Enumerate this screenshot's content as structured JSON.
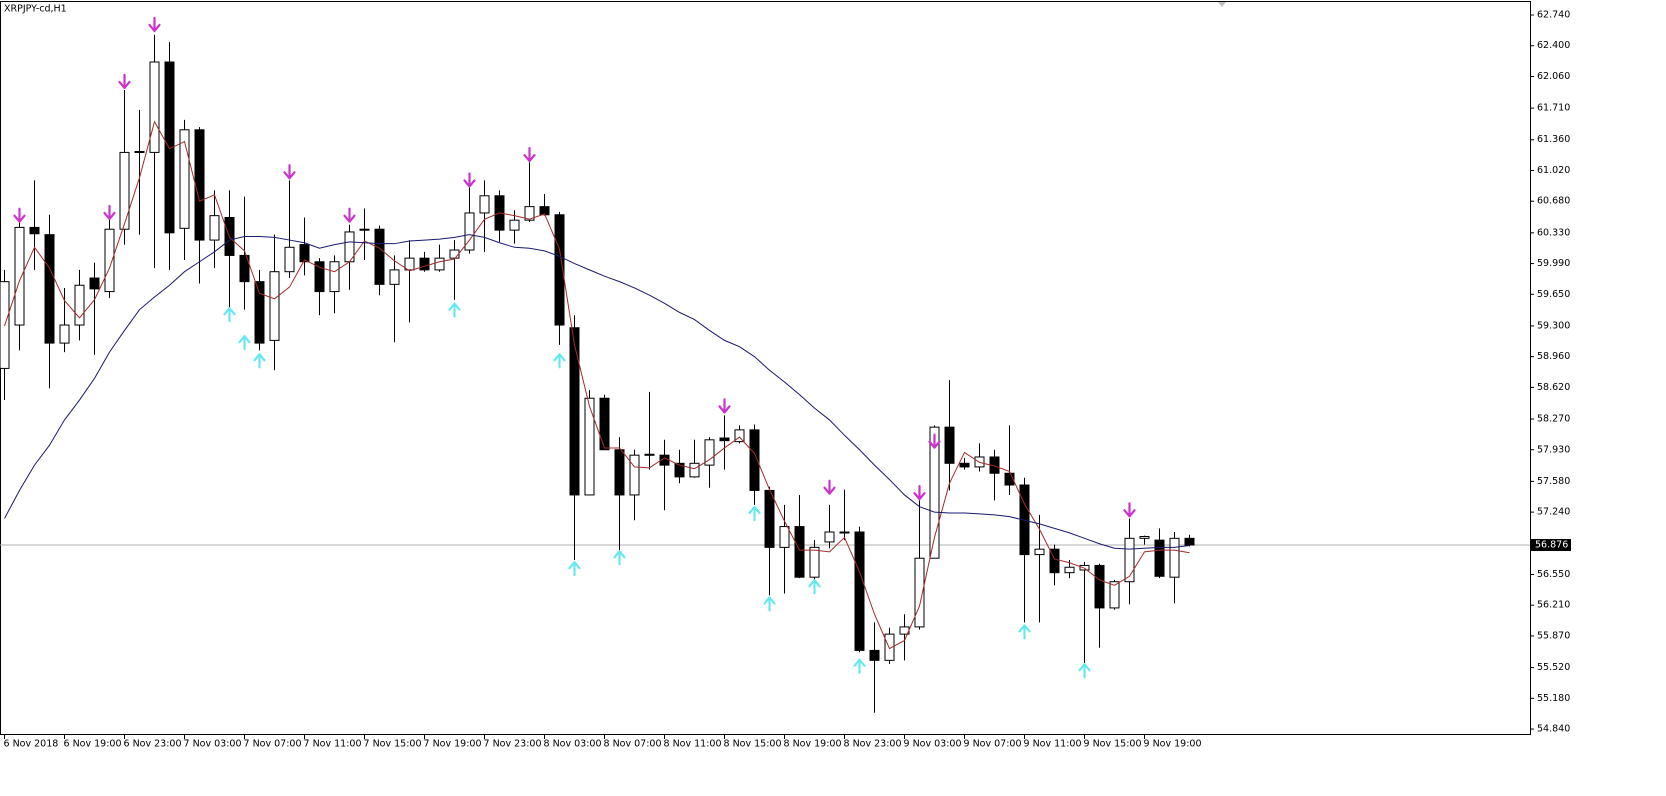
{
  "chart_data": {
    "type": "candlestick",
    "title": "XRPJPY-cd,H1",
    "categories": [
      "6 Nov 2018",
      null,
      null,
      null,
      "6 Nov 19:00",
      null,
      null,
      null,
      "6 Nov 23:00",
      null,
      null,
      null,
      "7 Nov 03:00",
      null,
      null,
      null,
      "7 Nov 07:00",
      null,
      null,
      null,
      "7 Nov 11:00",
      null,
      null,
      null,
      "7 Nov 15:00",
      null,
      null,
      null,
      "7 Nov 19:00",
      null,
      null,
      null,
      "7 Nov 23:00",
      null,
      null,
      null,
      "8 Nov 03:00",
      null,
      null,
      null,
      "8 Nov 07:00",
      null,
      null,
      null,
      "8 Nov 11:00",
      null,
      null,
      null,
      "8 Nov 15:00",
      null,
      null,
      null,
      "8 Nov 19:00",
      null,
      null,
      null,
      "8 Nov 23:00",
      null,
      null,
      null,
      "9 Nov 03:00",
      null,
      null,
      null,
      "9 Nov 07:00",
      null,
      null,
      null,
      "9 Nov 11:00",
      null,
      null,
      null,
      "9 Nov 15:00",
      null,
      null,
      null,
      "9 Nov 19:00",
      null,
      null,
      null
    ],
    "open": [
      58.83,
      59.31,
      60.39,
      60.31,
      59.11,
      59.31,
      59.83,
      59.68,
      60.37,
      61.22,
      61.22,
      62.22,
      60.38,
      61.47,
      60.25,
      60.5,
      60.08,
      59.79,
      59.14,
      59.9,
      60.2,
      60.01,
      59.68,
      60.01,
      60.36,
      60.37,
      59.76,
      59.92,
      60.05,
      59.92,
      60.05,
      60.14,
      60.55,
      60.74,
      60.36,
      60.47,
      60.62,
      60.53,
      59.28,
      57.43,
      58.5,
      57.93,
      57.43,
      57.87,
      57.87,
      57.78,
      57.63,
      57.76,
      58.06,
      58.02,
      58.15,
      57.48,
      56.85,
      57.08,
      56.52,
      56.91,
      57.02,
      57.02,
      55.71,
      55.6,
      55.89,
      55.97,
      56.73,
      58.18,
      57.78,
      57.74,
      57.85,
      57.67,
      57.54,
      56.77,
      56.83,
      56.57,
      56.6,
      56.65,
      56.18,
      56.47,
      56.95,
      56.93,
      56.52,
      56.95
    ],
    "high": [
      59.92,
      60.58,
      60.91,
      60.53,
      59.72,
      59.92,
      60.0,
      60.58,
      61.91,
      61.69,
      62.52,
      62.44,
      61.58,
      61.5,
      60.8,
      60.8,
      60.73,
      59.92,
      60.31,
      60.91,
      60.5,
      60.05,
      60.08,
      60.42,
      60.6,
      60.41,
      60.08,
      60.25,
      60.12,
      60.2,
      60.25,
      60.83,
      60.91,
      60.8,
      60.58,
      61.11,
      60.76,
      60.56,
      59.42,
      58.59,
      58.54,
      58.07,
      57.93,
      58.57,
      58.04,
      57.93,
      58.04,
      58.07,
      58.31,
      58.2,
      58.21,
      57.52,
      57.32,
      57.43,
      56.93,
      57.32,
      57.49,
      57.08,
      56.02,
      55.96,
      56.11,
      57.37,
      58.2,
      58.7,
      57.84,
      58.0,
      57.93,
      58.2,
      57.62,
      57.21,
      56.88,
      56.71,
      56.69,
      56.67,
      56.49,
      57.17,
      56.98,
      57.06,
      57.02,
      56.99
    ],
    "low": [
      58.48,
      59.03,
      59.92,
      58.61,
      59.01,
      59.14,
      58.98,
      59.61,
      60.2,
      60.31,
      59.94,
      59.92,
      60.03,
      59.77,
      59.94,
      59.5,
      59.48,
      59.03,
      58.81,
      59.83,
      59.86,
      59.42,
      59.44,
      59.7,
      60.03,
      59.64,
      59.12,
      59.34,
      59.9,
      59.9,
      59.59,
      60.1,
      60.12,
      60.23,
      60.21,
      60.45,
      60.52,
      59.09,
      56.71,
      57.43,
      57.93,
      56.82,
      57.15,
      57.71,
      57.26,
      57.56,
      57.62,
      57.51,
      57.71,
      58.0,
      57.32,
      56.32,
      56.34,
      56.51,
      56.49,
      56.84,
      56.93,
      55.69,
      55.02,
      55.56,
      55.6,
      55.94,
      56.73,
      57.48,
      57.71,
      57.69,
      57.37,
      57.43,
      56.02,
      56.02,
      56.43,
      56.51,
      55.57,
      55.74,
      56.16,
      56.22,
      56.88,
      56.51,
      56.23,
      56.86
    ],
    "close": [
      59.79,
      60.39,
      60.32,
      59.11,
      59.31,
      59.75,
      59.71,
      60.37,
      61.22,
      61.23,
      62.22,
      60.33,
      61.47,
      60.25,
      60.52,
      60.08,
      59.79,
      59.11,
      59.9,
      60.17,
      60.01,
      59.68,
      60.01,
      60.34,
      60.37,
      59.76,
      59.92,
      60.05,
      59.92,
      60.05,
      60.14,
      60.55,
      60.74,
      60.36,
      60.47,
      60.62,
      60.53,
      59.31,
      57.43,
      58.5,
      57.93,
      57.43,
      57.87,
      57.88,
      57.76,
      57.63,
      57.78,
      58.04,
      58.03,
      58.15,
      57.48,
      56.85,
      57.08,
      56.52,
      56.85,
      57.02,
      57.02,
      55.71,
      55.6,
      55.89,
      55.97,
      56.73,
      58.18,
      57.78,
      57.74,
      57.85,
      57.67,
      57.54,
      56.77,
      56.83,
      56.57,
      56.63,
      56.65,
      56.18,
      56.47,
      56.95,
      56.97,
      56.53,
      56.95,
      56.876
    ],
    "bull_color": "#ffffff",
    "bear_color": "#000000",
    "lines": [
      {
        "color": "#a52a2a",
        "values": [
          59.3,
          59.8,
          60.17,
          59.94,
          59.58,
          59.39,
          59.59,
          59.94,
          60.43,
          60.94,
          61.56,
          61.26,
          61.34,
          60.68,
          60.75,
          60.28,
          60.13,
          59.66,
          59.6,
          59.73,
          60.03,
          59.95,
          59.9,
          60.01,
          60.24,
          60.16,
          60.02,
          59.91,
          59.96,
          60.01,
          60.04,
          60.25,
          60.48,
          60.55,
          60.52,
          60.48,
          60.54,
          60.15,
          59.09,
          58.41,
          57.95,
          57.95,
          57.74,
          57.73,
          57.84,
          57.76,
          57.72,
          57.82,
          57.95,
          58.07,
          57.89,
          57.49,
          57.14,
          56.82,
          56.82,
          56.8,
          56.96,
          56.58,
          56.11,
          55.73,
          55.82,
          56.2,
          56.96,
          57.56,
          57.9,
          57.79,
          57.75,
          57.69,
          57.33,
          57.05,
          56.72,
          56.68,
          56.62,
          56.49,
          56.43,
          56.53,
          56.8,
          56.82,
          56.82,
          56.79
        ]
      },
      {
        "color": "#191970",
        "values": [
          57.17,
          57.48,
          57.76,
          57.98,
          58.26,
          58.48,
          58.72,
          59.01,
          59.25,
          59.48,
          59.62,
          59.75,
          59.9,
          60.01,
          60.12,
          60.25,
          60.29,
          60.29,
          60.28,
          60.25,
          60.22,
          60.16,
          60.2,
          60.23,
          60.22,
          60.21,
          60.21,
          60.24,
          60.25,
          60.26,
          60.28,
          60.31,
          60.28,
          60.22,
          60.17,
          60.16,
          60.13,
          60.07,
          59.99,
          59.92,
          59.85,
          59.79,
          59.72,
          59.64,
          59.55,
          59.45,
          59.37,
          59.25,
          59.14,
          59.07,
          58.96,
          58.81,
          58.68,
          58.54,
          58.39,
          58.26,
          58.09,
          57.93,
          57.76,
          57.6,
          57.43,
          57.3,
          57.24,
          57.23,
          57.23,
          57.22,
          57.21,
          57.19,
          57.15,
          57.11,
          57.06,
          57.01,
          56.95,
          56.89,
          56.84,
          56.83,
          56.84,
          56.85,
          56.85,
          56.87
        ]
      }
    ],
    "markers": [
      {
        "color": "#cc33cc",
        "shape": "down",
        "values": [
          null,
          60.52,
          null,
          null,
          null,
          null,
          null,
          60.55,
          62.0,
          null,
          62.63,
          null,
          null,
          null,
          null,
          null,
          null,
          null,
          null,
          61.0,
          null,
          null,
          null,
          60.52,
          null,
          null,
          null,
          null,
          null,
          null,
          null,
          60.91,
          null,
          null,
          null,
          61.19,
          null,
          null,
          null,
          null,
          null,
          null,
          null,
          null,
          null,
          null,
          null,
          null,
          58.41,
          null,
          null,
          null,
          null,
          null,
          null,
          57.51,
          null,
          null,
          null,
          null,
          null,
          57.45,
          58.02,
          null,
          null,
          null,
          null,
          null,
          null,
          null,
          null,
          null,
          null,
          null,
          null,
          57.26,
          null,
          null,
          null,
          null
        ]
      },
      {
        "color": "#66e8f0",
        "shape": "up",
        "values": [
          null,
          null,
          null,
          null,
          null,
          null,
          null,
          null,
          null,
          null,
          null,
          null,
          null,
          null,
          null,
          59.43,
          59.12,
          58.92,
          null,
          null,
          null,
          null,
          null,
          null,
          null,
          null,
          null,
          null,
          null,
          null,
          59.48,
          null,
          null,
          null,
          null,
          null,
          null,
          58.92,
          56.62,
          null,
          null,
          56.74,
          null,
          null,
          null,
          null,
          null,
          null,
          null,
          null,
          57.23,
          56.23,
          null,
          null,
          56.42,
          null,
          null,
          55.54,
          null,
          null,
          null,
          null,
          null,
          null,
          null,
          null,
          null,
          null,
          55.92,
          null,
          null,
          null,
          55.49,
          null,
          null,
          null,
          null,
          null,
          null,
          null
        ]
      }
    ],
    "last_price": {
      "value": 56.876,
      "label": "56.876"
    },
    "ylim": [
      54.774,
      62.884
    ],
    "yticks": [
      {
        "value": 62.74,
        "label": "62.740"
      },
      {
        "value": 62.4,
        "label": "62.400"
      },
      {
        "value": 62.06,
        "label": "62.060"
      },
      {
        "value": 61.71,
        "label": "61.710"
      },
      {
        "value": 61.36,
        "label": "61.360"
      },
      {
        "value": 61.02,
        "label": "61.020"
      },
      {
        "value": 60.68,
        "label": "60.680"
      },
      {
        "value": 60.33,
        "label": "60.330"
      },
      {
        "value": 59.99,
        "label": "59.990"
      },
      {
        "value": 59.65,
        "label": "59.650"
      },
      {
        "value": 59.3,
        "label": "59.300"
      },
      {
        "value": 58.96,
        "label": "58.960"
      },
      {
        "value": 58.62,
        "label": "58.620"
      },
      {
        "value": 58.27,
        "label": "58.270"
      },
      {
        "value": 57.93,
        "label": "57.930"
      },
      {
        "value": 57.58,
        "label": "57.580"
      },
      {
        "value": 57.24,
        "label": "57.240"
      },
      {
        "value": 56.55,
        "label": "56.550"
      },
      {
        "value": 56.21,
        "label": "56.210"
      },
      {
        "value": 55.87,
        "label": "55.870"
      },
      {
        "value": 55.52,
        "label": "55.520"
      },
      {
        "value": 55.18,
        "label": "55.180"
      },
      {
        "value": 54.84,
        "label": "54.840"
      }
    ]
  }
}
